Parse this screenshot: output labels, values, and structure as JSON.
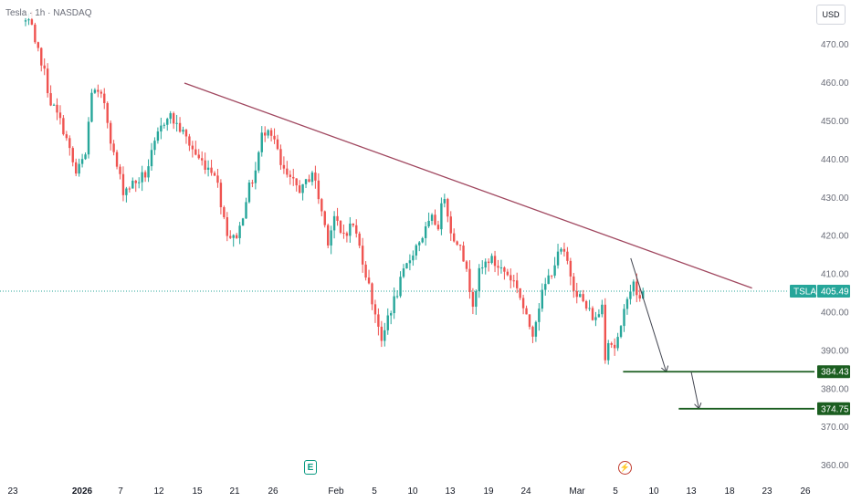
{
  "header": {
    "symbol_line": "Tesla · 1h · NASDAQ",
    "currency": "USD"
  },
  "price_axis": {
    "ticks": [
      470,
      460,
      450,
      440,
      430,
      420,
      410,
      400,
      390,
      380,
      370,
      360
    ],
    "tick_labels": [
      "470.00",
      "460.00",
      "450.00",
      "440.00",
      "430.00",
      "420.00",
      "410.00",
      "400.00",
      "390.00",
      "380.00",
      "370.00",
      "360.00"
    ]
  },
  "time_axis": {
    "labels": [
      {
        "text": "23",
        "bold": false
      },
      {
        "text": "2026",
        "bold": true
      },
      {
        "text": "7",
        "bold": false
      },
      {
        "text": "12",
        "bold": false
      },
      {
        "text": "15",
        "bold": false
      },
      {
        "text": "21",
        "bold": false
      },
      {
        "text": "26",
        "bold": false
      },
      {
        "text": "Feb",
        "bold": false
      },
      {
        "text": "5",
        "bold": false
      },
      {
        "text": "10",
        "bold": false
      },
      {
        "text": "13",
        "bold": false
      },
      {
        "text": "19",
        "bold": false
      },
      {
        "text": "24",
        "bold": false
      },
      {
        "text": "Mar",
        "bold": false
      },
      {
        "text": "5",
        "bold": false
      },
      {
        "text": "10",
        "bold": false
      },
      {
        "text": "13",
        "bold": false
      },
      {
        "text": "18",
        "bold": false
      },
      {
        "text": "23",
        "bold": false
      },
      {
        "text": "26",
        "bold": false
      }
    ]
  },
  "price_labels": {
    "ticker": "TSLA",
    "last_price": "405.49",
    "target_1": "384.43",
    "target_2": "374.75"
  },
  "colors": {
    "up": "#26a69a",
    "down": "#ef5350",
    "trendline": "#a0475f",
    "target_line": "#1b5e20",
    "last_price": "#26a69a"
  },
  "icons": {
    "earnings": "E",
    "split": "⚡"
  },
  "chart_data": {
    "type": "candlestick",
    "symbol": "TSLA",
    "interval": "1h",
    "exchange": "NASDAQ",
    "ylim": [
      356,
      480
    ],
    "last_price": 405.49,
    "x_range_dates": [
      "2025-12-23",
      "2026-03-26"
    ],
    "waypoints": [
      [
        0,
        476
      ],
      [
        2,
        474
      ],
      [
        3,
        469
      ],
      [
        5,
        466
      ],
      [
        8,
        455
      ],
      [
        12,
        448
      ],
      [
        16,
        436
      ],
      [
        19,
        441
      ],
      [
        21,
        458
      ],
      [
        25,
        455
      ],
      [
        28,
        441
      ],
      [
        31,
        432
      ],
      [
        35,
        434
      ],
      [
        38,
        436
      ],
      [
        42,
        446
      ],
      [
        45,
        452
      ],
      [
        49,
        448
      ],
      [
        52,
        444
      ],
      [
        55,
        440
      ],
      [
        58,
        438
      ],
      [
        60,
        437
      ],
      [
        62,
        429
      ],
      [
        64,
        421
      ],
      [
        66,
        419
      ],
      [
        68,
        422
      ],
      [
        70,
        430
      ],
      [
        73,
        437
      ],
      [
        75,
        446
      ],
      [
        77,
        449
      ],
      [
        79,
        445
      ],
      [
        81,
        438
      ],
      [
        84,
        434
      ],
      [
        88,
        432
      ],
      [
        91,
        437
      ],
      [
        93,
        430
      ],
      [
        96,
        419
      ],
      [
        98,
        425
      ],
      [
        100,
        420
      ],
      [
        104,
        423
      ],
      [
        107,
        414
      ],
      [
        110,
        403
      ],
      [
        112,
        397
      ],
      [
        113,
        391
      ],
      [
        115,
        399
      ],
      [
        117,
        403
      ],
      [
        120,
        410
      ],
      [
        123,
        416
      ],
      [
        126,
        420
      ],
      [
        129,
        424
      ],
      [
        131,
        423
      ],
      [
        133,
        431
      ],
      [
        134,
        426
      ],
      [
        136,
        418
      ],
      [
        138,
        419
      ],
      [
        140,
        410
      ],
      [
        142,
        403
      ],
      [
        144,
        410
      ],
      [
        147,
        414
      ],
      [
        150,
        412
      ],
      [
        153,
        410
      ],
      [
        156,
        407
      ],
      [
        159,
        398
      ],
      [
        161,
        395
      ],
      [
        163,
        402
      ],
      [
        165,
        407
      ],
      [
        168,
        413
      ],
      [
        170,
        416
      ],
      [
        172,
        413
      ],
      [
        174,
        407
      ],
      [
        176,
        404
      ],
      [
        178,
        401
      ],
      [
        181,
        398
      ],
      [
        183,
        402
      ],
      [
        184,
        389
      ],
      [
        185,
        393
      ],
      [
        187,
        391
      ],
      [
        189,
        395
      ],
      [
        191,
        405
      ],
      [
        193,
        407
      ],
      [
        195,
        403
      ],
      [
        196,
        405
      ]
    ],
    "annotations": [
      {
        "type": "trendline",
        "from": {
          "date": "2026-01-14",
          "price": 459.9
        },
        "to": {
          "date": "2026-03-21",
          "price": 406.3
        }
      },
      {
        "type": "arrow",
        "from": {
          "date": "2026-03-07",
          "price": 414.1
        },
        "to": {
          "date": "2026-03-11",
          "price": 384.4
        }
      },
      {
        "type": "horizontal_line",
        "price": 384.43,
        "from_date": "2026-03-06"
      },
      {
        "type": "arrow",
        "from": {
          "date": "2026-03-13",
          "price": 384.4
        },
        "to": {
          "date": "2026-03-14",
          "price": 374.8
        }
      },
      {
        "type": "horizontal_line",
        "price": 374.75,
        "from_date": "2026-03-12"
      }
    ]
  }
}
